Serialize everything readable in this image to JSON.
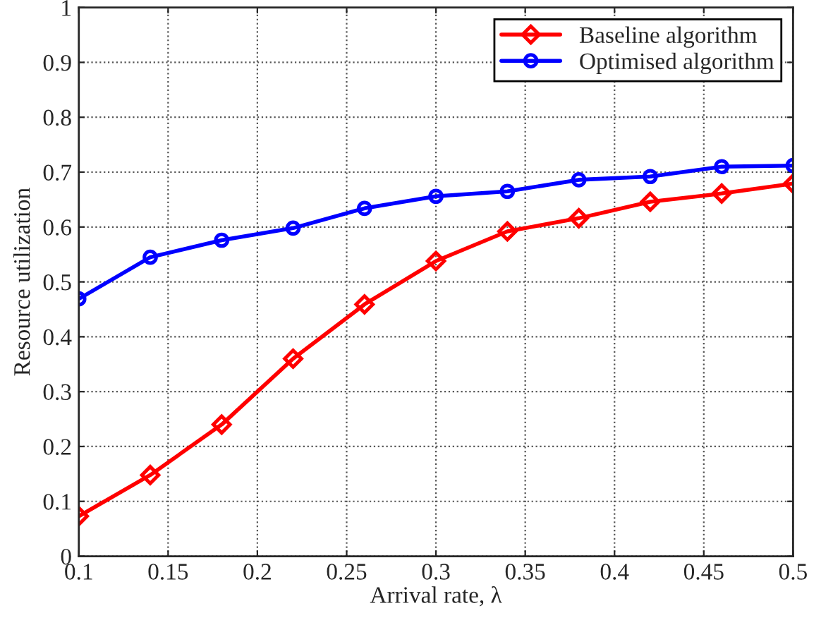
{
  "chart_data": {
    "type": "line",
    "xlabel": "Arrival rate, λ",
    "ylabel": "Resource utilization",
    "x": [
      0.1,
      0.14,
      0.18,
      0.22,
      0.26,
      0.3,
      0.34,
      0.38,
      0.42,
      0.46,
      0.5
    ],
    "series": [
      {
        "name": "Baseline algorithm",
        "color": "#ff0000",
        "marker": "diamond",
        "values": [
          0.073,
          0.148,
          0.24,
          0.36,
          0.459,
          0.538,
          0.592,
          0.616,
          0.646,
          0.661,
          0.679
        ]
      },
      {
        "name": "Optimised algorithm",
        "color": "#0000ff",
        "marker": "circle",
        "values": [
          0.469,
          0.545,
          0.576,
          0.598,
          0.634,
          0.656,
          0.665,
          0.686,
          0.692,
          0.71,
          0.712
        ]
      }
    ],
    "xlim": [
      0.1,
      0.5
    ],
    "xticks": [
      0.1,
      0.15,
      0.2,
      0.25,
      0.3,
      0.35,
      0.4,
      0.45,
      0.5
    ],
    "ylim": [
      0,
      1
    ],
    "yticks": [
      0,
      0.1,
      0.2,
      0.3,
      0.4,
      0.5,
      0.6,
      0.7,
      0.8,
      0.9,
      1
    ],
    "grid": true,
    "legend": "top right",
    "line_style": "solid"
  }
}
